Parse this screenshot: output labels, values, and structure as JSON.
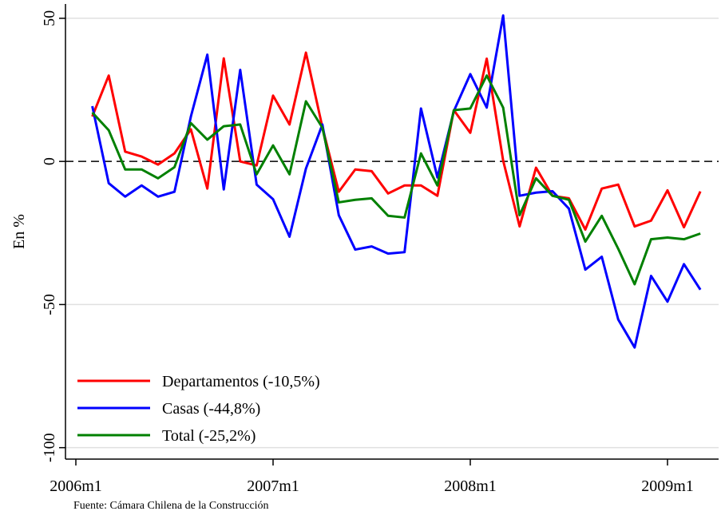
{
  "chart_data": {
    "type": "line",
    "y_label": "En %",
    "source": "Fuente: Cámara Chilena de la Construcción",
    "x": [
      "2006m2",
      "2006m3",
      "2006m4",
      "2006m5",
      "2006m6",
      "2006m7",
      "2006m8",
      "2006m9",
      "2006m10",
      "2006m11",
      "2006m12",
      "2007m1",
      "2007m2",
      "2007m3",
      "2007m4",
      "2007m5",
      "2007m6",
      "2007m7",
      "2007m8",
      "2007m9",
      "2007m10",
      "2007m11",
      "2007m12",
      "2008m1",
      "2008m2",
      "2008m3",
      "2008m4",
      "2008m5",
      "2008m6",
      "2008m7",
      "2008m8",
      "2008m9",
      "2008m10",
      "2008m11",
      "2008m12",
      "2009m1",
      "2009m2",
      "2009m3"
    ],
    "xticks": [
      "2006m1",
      "2007m1",
      "2008m1",
      "2009m1"
    ],
    "ylim": [
      -104,
      55
    ],
    "yticks": [
      -100,
      -50,
      0,
      50
    ],
    "grid": true,
    "hline": 0,
    "legend": "lower left",
    "series": [
      {
        "name": "Departamentos (-10,5%)",
        "color": "#ff0000",
        "values": [
          15.7,
          30,
          3.4,
          1.7,
          -1.1,
          2.8,
          11.2,
          -9.5,
          36,
          0,
          -1.4,
          23,
          12.9,
          38,
          12,
          -10.6,
          -2.8,
          -3.4,
          -11.2,
          -8.4,
          -8.4,
          -12,
          17.9,
          10,
          35.9,
          0.3,
          -22.7,
          -2.2,
          -12,
          -12.9,
          -23.8,
          -9.5,
          -8.1,
          -22.7,
          -20.7,
          -10.1,
          -23,
          -10.5
        ]
      },
      {
        "name": "Casas (-44,8%)",
        "color": "#0000ff",
        "values": [
          19.3,
          -7.6,
          -12.3,
          -8.4,
          -12.3,
          -10.6,
          15.7,
          37.3,
          -9.8,
          32,
          -8.1,
          -13.2,
          -26.3,
          -2.5,
          12.9,
          -18.8,
          -30.8,
          -29.7,
          -32.2,
          -31.7,
          18.5,
          -5.6,
          17.6,
          30.5,
          18.8,
          51,
          -12,
          -10.9,
          -10.4,
          -16.5,
          -37.8,
          -33.3,
          -55.2,
          -65,
          -40,
          -49,
          -35.9,
          -44.8
        ]
      },
      {
        "name": "Total (-25,2%)",
        "color": "#008000",
        "values": [
          17.1,
          10.9,
          -2.8,
          -2.8,
          -5.9,
          -2,
          13.4,
          7.6,
          12.3,
          12.9,
          -4.5,
          5.6,
          -4.5,
          21,
          11.8,
          -14.3,
          -13.4,
          -12.9,
          -19,
          -19.6,
          2.8,
          -8.4,
          17.9,
          18.5,
          30,
          18.8,
          -18.8,
          -5.9,
          -12,
          -13.4,
          -28,
          -19,
          -30.5,
          -42.9,
          -27.2,
          -26.6,
          -27.2,
          -25.2
        ]
      }
    ]
  }
}
